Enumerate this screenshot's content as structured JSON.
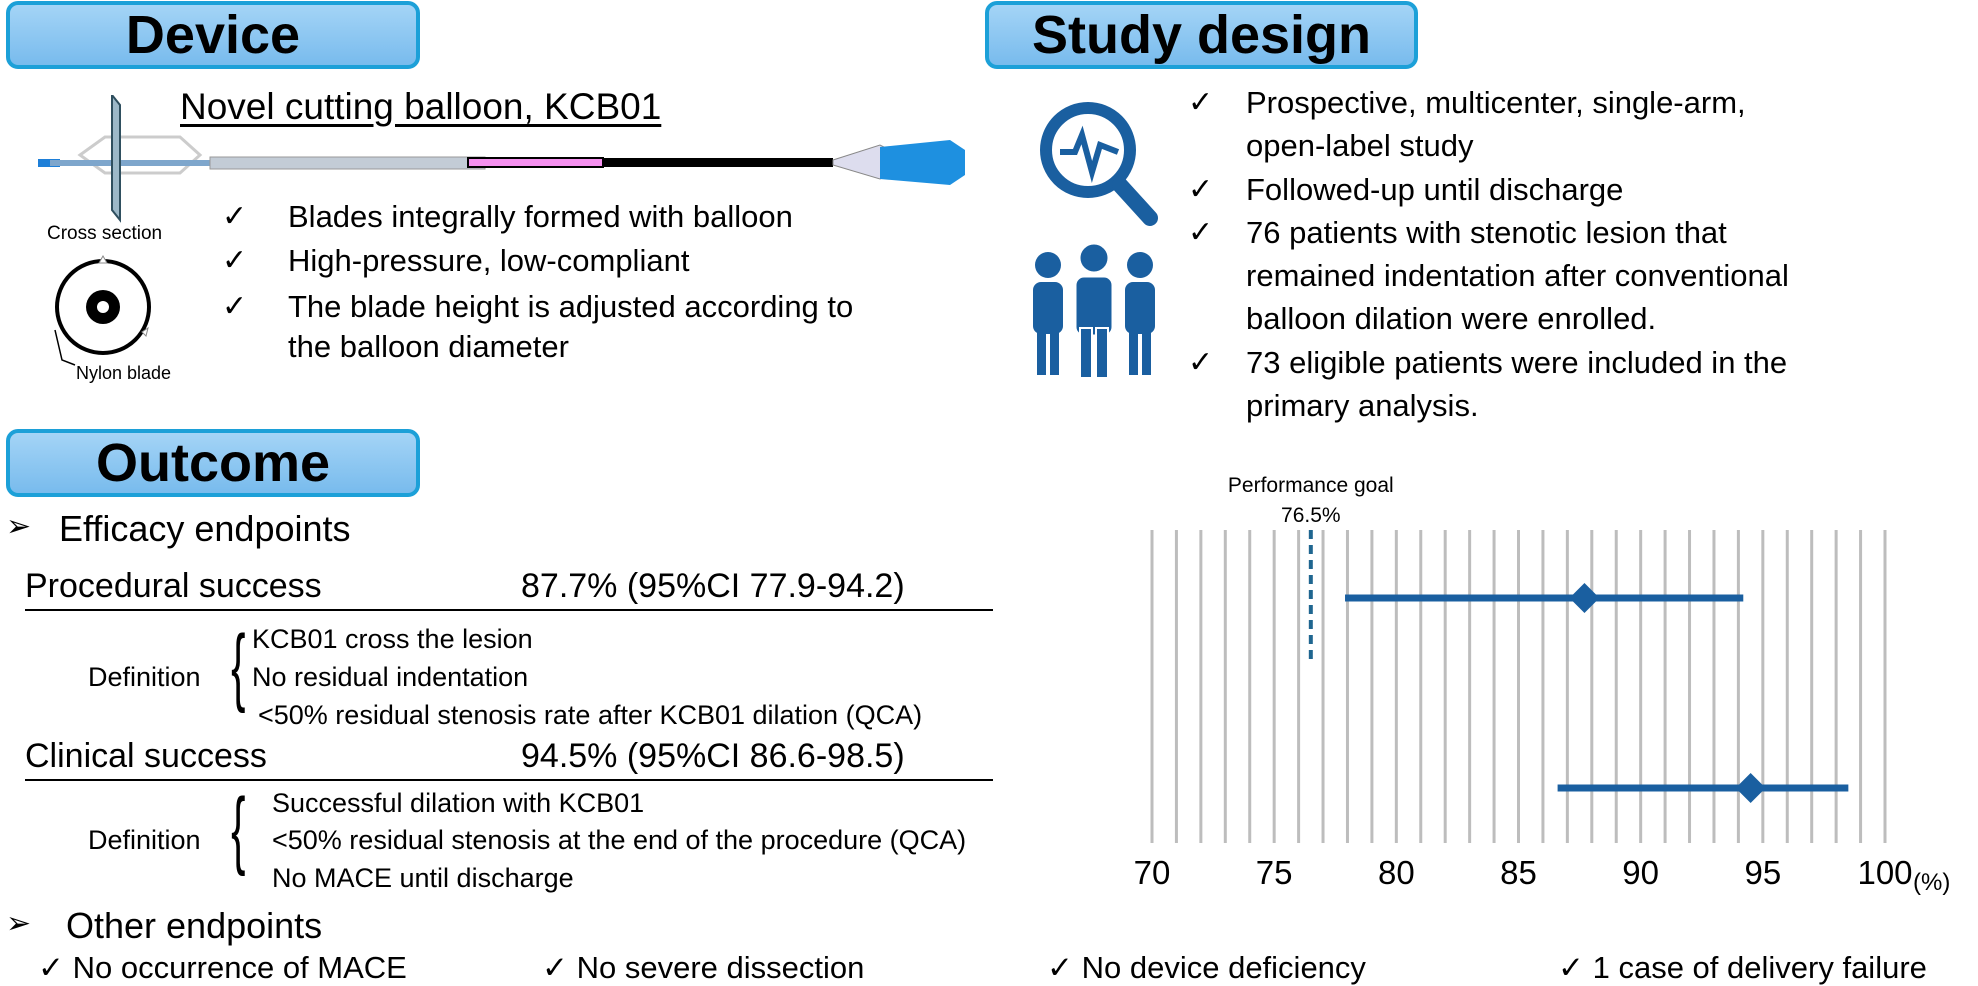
{
  "device": {
    "header": "Device",
    "title": "Novel cutting balloon, KCB01",
    "cross_section": "Cross section",
    "nylon_blade": "Nylon blade",
    "bullets": [
      "Blades integrally formed with balloon",
      "High-pressure, low-compliant",
      "The blade height is adjusted according to",
      "the balloon diameter"
    ]
  },
  "study": {
    "header": "Study design",
    "bullets": [
      "Prospective, multicenter, single-arm,",
      "open-label study",
      "Followed-up until discharge",
      "76 patients with stenotic lesion that",
      "remained indentation after conventional",
      "balloon dilation were enrolled.",
      "73 eligible patients were included in the",
      "primary analysis."
    ]
  },
  "outcome": {
    "header": "Outcome",
    "efficacy": "Efficacy endpoints",
    "procedural": {
      "label": "Procedural success",
      "value": "87.7% (95%CI 77.9-94.2)",
      "definition_label": "Definition",
      "definitions": [
        "KCB01 cross the lesion",
        "No residual indentation",
        "<50% residual stenosis rate after KCB01 dilation (QCA)"
      ]
    },
    "clinical": {
      "label": "Clinical success",
      "value": "94.5% (95%CI 86.6-98.5)",
      "definition_label": "Definition",
      "definitions": [
        "Successful dilation with KCB01",
        "<50% residual stenosis at the end of the procedure (QCA)",
        "No MACE until discharge"
      ]
    },
    "other": "Other endpoints",
    "other_items": [
      "No occurrence of MACE",
      "No severe dissection",
      "No device deficiency",
      "1 case of delivery failure"
    ]
  },
  "check_mark": "✓",
  "arrow_mark": "➢",
  "chart_data": {
    "type": "forest",
    "xlim": [
      70,
      100
    ],
    "ticks": [
      "70",
      "75",
      "80",
      "85",
      "90",
      "95",
      "100"
    ],
    "tick_values": [
      70,
      75,
      80,
      85,
      90,
      95,
      100
    ],
    "unit": "(%)",
    "grid": "vertical every 1",
    "reference": {
      "label": "Performance goal",
      "value_label": "76.5%",
      "value": 76.5
    },
    "rows": [
      {
        "estimate": 87.7,
        "lower": 77.9,
        "upper": 94.2
      },
      {
        "estimate": 94.5,
        "lower": 86.6,
        "upper": 98.5
      }
    ],
    "color": "#1a5fa0"
  }
}
